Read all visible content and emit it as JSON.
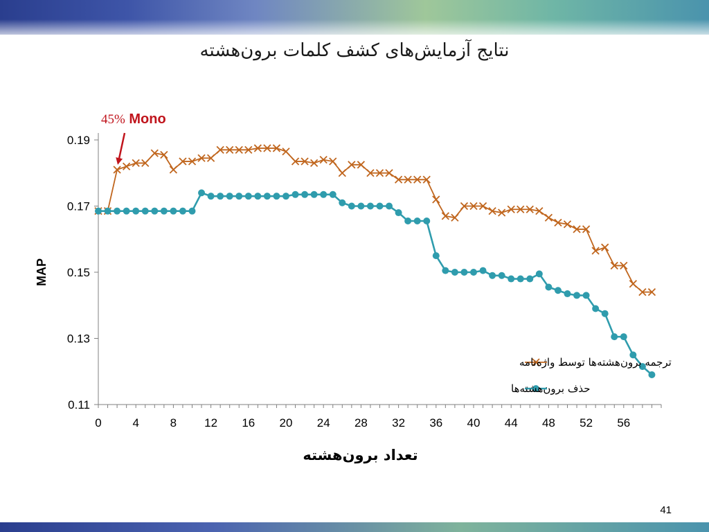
{
  "slide": {
    "title": "نتایج آزمایش‌های کشف کلمات برون‌هشته",
    "page_number": "41"
  },
  "colors": {
    "translate_series": "#c0661e",
    "remove_series": "#2f9cad",
    "annotation": "#c0141c",
    "axis": "#808080"
  },
  "chart_data": {
    "type": "line",
    "title": "",
    "xlabel": "تعداد برون‌هشته",
    "ylabel": "MAP",
    "xlim": [
      0,
      60
    ],
    "ylim": [
      0.11,
      0.19
    ],
    "x_ticks": [
      "0",
      "4",
      "8",
      "12",
      "16",
      "20",
      "24",
      "28",
      "32",
      "36",
      "40",
      "44",
      "48",
      "52",
      "56"
    ],
    "y_ticks": [
      "0.11",
      "0.13",
      "0.15",
      "0.17",
      "0.19"
    ],
    "grid": false,
    "legend_position": "bottom-right",
    "annotation": {
      "text_pct": "45%",
      "text_label": "Mono",
      "x": 2,
      "y": 0.181
    },
    "series": [
      {
        "name": "ترجمه برون‌هشته‌ها توسط واژه‌نامه",
        "marker": "x",
        "x": [
          0,
          1,
          2,
          3,
          4,
          5,
          6,
          7,
          8,
          9,
          10,
          11,
          12,
          13,
          14,
          15,
          16,
          17,
          18,
          19,
          20,
          21,
          22,
          23,
          24,
          25,
          26,
          27,
          28,
          29,
          30,
          31,
          32,
          33,
          34,
          35,
          36,
          37,
          38,
          39,
          40,
          41,
          42,
          43,
          44,
          45,
          46,
          47,
          48,
          49,
          50,
          51,
          52,
          53,
          54,
          55,
          56,
          57,
          58,
          59
        ],
        "values": [
          0.1685,
          0.1685,
          0.181,
          0.182,
          0.183,
          0.183,
          0.186,
          0.1855,
          0.181,
          0.1835,
          0.1835,
          0.1845,
          0.1845,
          0.187,
          0.187,
          0.187,
          0.187,
          0.1875,
          0.1875,
          0.1875,
          0.1865,
          0.1835,
          0.1835,
          0.183,
          0.184,
          0.1835,
          0.18,
          0.1825,
          0.1825,
          0.18,
          0.18,
          0.18,
          0.178,
          0.178,
          0.178,
          0.178,
          0.172,
          0.167,
          0.1665,
          0.17,
          0.17,
          0.17,
          0.1685,
          0.168,
          0.169,
          0.169,
          0.169,
          0.1685,
          0.1665,
          0.165,
          0.1645,
          0.163,
          0.163,
          0.1565,
          0.1575,
          0.152,
          0.152,
          0.1465,
          0.144,
          0.144
        ]
      },
      {
        "name": "حذف برون‌هشته‌ها",
        "marker": "circle",
        "x": [
          0,
          1,
          2,
          3,
          4,
          5,
          6,
          7,
          8,
          9,
          10,
          11,
          12,
          13,
          14,
          15,
          16,
          17,
          18,
          19,
          20,
          21,
          22,
          23,
          24,
          25,
          26,
          27,
          28,
          29,
          30,
          31,
          32,
          33,
          34,
          35,
          36,
          37,
          38,
          39,
          40,
          41,
          42,
          43,
          44,
          45,
          46,
          47,
          48,
          49,
          50,
          51,
          52,
          53,
          54,
          55,
          56,
          57,
          58,
          59
        ],
        "values": [
          0.1685,
          0.1685,
          0.1685,
          0.1685,
          0.1685,
          0.1685,
          0.1685,
          0.1685,
          0.1685,
          0.1685,
          0.1685,
          0.174,
          0.173,
          0.173,
          0.173,
          0.173,
          0.173,
          0.173,
          0.173,
          0.173,
          0.173,
          0.1735,
          0.1735,
          0.1735,
          0.1735,
          0.1735,
          0.171,
          0.17,
          0.17,
          0.17,
          0.17,
          0.17,
          0.168,
          0.1655,
          0.1655,
          0.1655,
          0.155,
          0.1505,
          0.15,
          0.15,
          0.15,
          0.1505,
          0.149,
          0.149,
          0.148,
          0.148,
          0.148,
          0.1495,
          0.1455,
          0.1445,
          0.1435,
          0.143,
          0.143,
          0.139,
          0.1375,
          0.1305,
          0.1305,
          0.125,
          0.1215,
          0.119
        ]
      }
    ]
  }
}
